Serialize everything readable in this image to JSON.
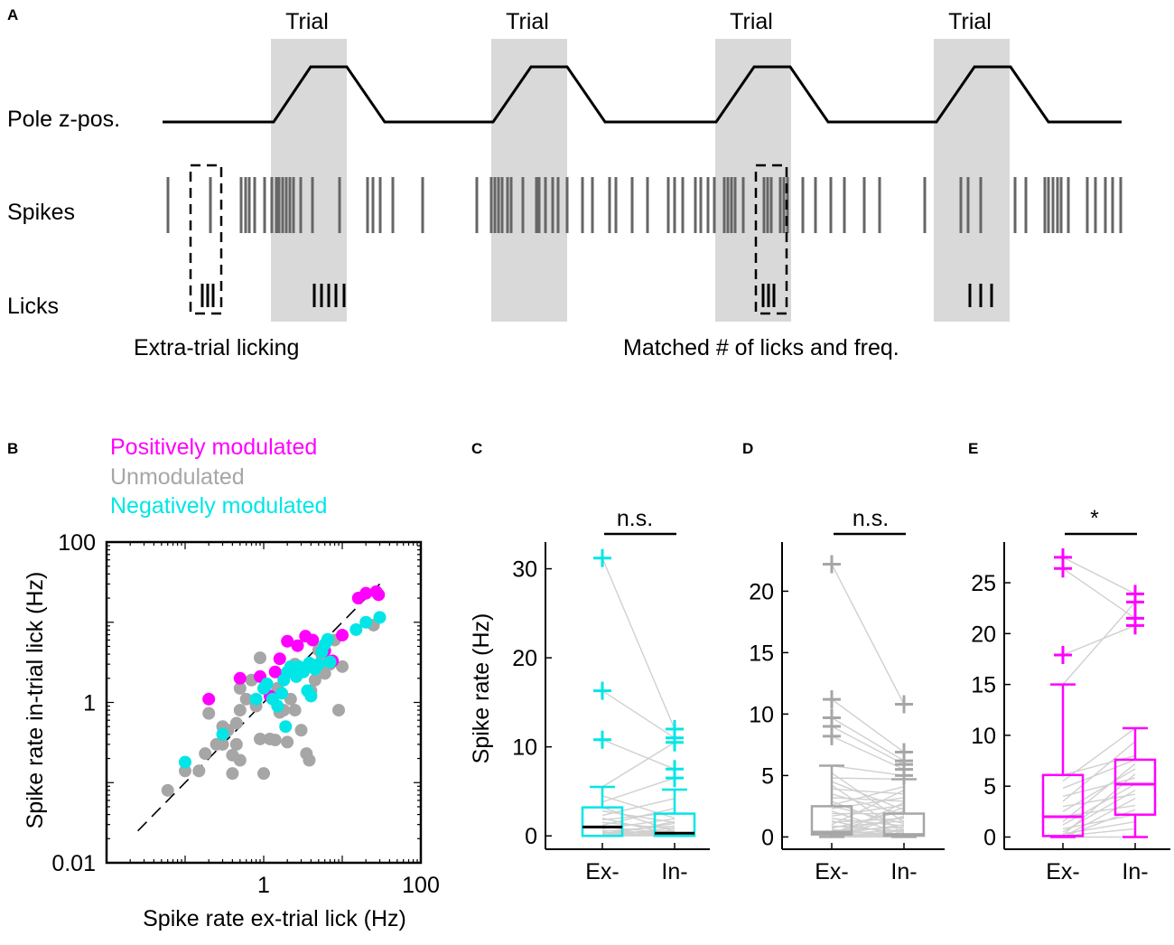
{
  "colors": {
    "positive": "#ff00ff",
    "unmodulated": "#a6a6a6",
    "negative": "#00e6e6",
    "trial_shade": "#d9d9d9",
    "spike": "#666666",
    "pair_line": "#d0d0d0",
    "ink": "#000000"
  },
  "panel_a": {
    "letter": "A",
    "trial_label": "Trial",
    "row_labels": {
      "pole": "Pole z-pos.",
      "spikes": "Spikes",
      "licks": "Licks"
    },
    "captions": {
      "left": "Extra-trial licking",
      "right": "Matched # of licks and freq."
    }
  },
  "panel_b": {
    "letter": "B",
    "legend": [
      "Positively modulated",
      "Unmodulated",
      "Negatively modulated"
    ]
  },
  "panel_c": {
    "letter": "C",
    "sig": "n.s."
  },
  "panel_d": {
    "letter": "D",
    "sig": "n.s."
  },
  "panel_e": {
    "letter": "E",
    "sig": "*"
  },
  "chart_data": [
    {
      "type": "scatter",
      "panel": "B",
      "title": "",
      "xlabel": "Spike rate ex-trial lick (Hz)",
      "ylabel": "Spike rate in-trial lick (Hz)",
      "xscale": "log",
      "yscale": "log",
      "xlim": [
        0.01,
        100
      ],
      "ylim": [
        0.01,
        100
      ],
      "xticks": [
        0.01,
        1,
        100
      ],
      "xtick_labels": [
        "",
        "1",
        "100"
      ],
      "yticks": [
        0.01,
        1,
        100
      ],
      "ytick_labels": [
        "0.01",
        "1",
        "100"
      ],
      "unity_line": [
        0.025,
        30
      ],
      "legend_position": "top-left (above axes)",
      "series": [
        {
          "name": "Positively modulated",
          "points": [
            [
              0.2,
              1.1
            ],
            [
              0.5,
              2.0
            ],
            [
              1.4,
              2.4
            ],
            [
              1.6,
              3.5
            ],
            [
              1.8,
              2.1
            ],
            [
              2.7,
              5.1
            ],
            [
              3.4,
              6.7
            ],
            [
              4.2,
              6.0
            ],
            [
              6.0,
              4.4
            ],
            [
              7.5,
              3.3
            ],
            [
              10,
              6.9
            ],
            [
              16,
              20
            ],
            [
              20,
              23
            ],
            [
              27,
              24
            ],
            [
              29,
              22
            ],
            [
              1.2,
              1.2
            ],
            [
              0.9,
              2.1
            ],
            [
              2.0,
              5.8
            ]
          ]
        },
        {
          "name": "Unmodulated",
          "points": [
            [
              0.06,
              0.08
            ],
            [
              0.1,
              0.14
            ],
            [
              0.15,
              0.14
            ],
            [
              0.18,
              0.23
            ],
            [
              0.2,
              0.73
            ],
            [
              0.25,
              0.3
            ],
            [
              0.3,
              0.3
            ],
            [
              0.35,
              0.45
            ],
            [
              0.4,
              0.13
            ],
            [
              0.4,
              0.22
            ],
            [
              0.45,
              0.3
            ],
            [
              0.5,
              0.8
            ],
            [
              0.5,
              1.5
            ],
            [
              0.5,
              0.19
            ],
            [
              0.6,
              1.1
            ],
            [
              0.7,
              1.9
            ],
            [
              0.8,
              0.9
            ],
            [
              0.9,
              0.35
            ],
            [
              0.9,
              3.6
            ],
            [
              1.0,
              0.13
            ],
            [
              1.2,
              0.35
            ],
            [
              1.4,
              0.34
            ],
            [
              1.6,
              0.75
            ],
            [
              1.8,
              0.8
            ],
            [
              2.0,
              0.32
            ],
            [
              2.2,
              1.1
            ],
            [
              2.5,
              0.8
            ],
            [
              3.0,
              0.45
            ],
            [
              3.5,
              0.23
            ],
            [
              3.8,
              0.19
            ],
            [
              4.0,
              1.4
            ],
            [
              4.5,
              1.9
            ],
            [
              5.0,
              4.5
            ],
            [
              5.5,
              3.9
            ],
            [
              6.0,
              2.3
            ],
            [
              7.0,
              3.0
            ],
            [
              8.0,
              6.0
            ],
            [
              9.0,
              0.8
            ],
            [
              10,
              2.8
            ],
            [
              25,
              9.2
            ],
            [
              0.3,
              0.5
            ],
            [
              0.45,
              0.55
            ],
            [
              2.5,
              3.0
            ],
            [
              3.2,
              2.5
            ],
            [
              1.5,
              1.5
            ]
          ]
        },
        {
          "name": "Negatively modulated",
          "points": [
            [
              0.1,
              0.18
            ],
            [
              0.3,
              0.4
            ],
            [
              0.8,
              1.1
            ],
            [
              1.0,
              1.5
            ],
            [
              1.1,
              1.7
            ],
            [
              1.3,
              1.1
            ],
            [
              1.5,
              0.9
            ],
            [
              1.7,
              1.3
            ],
            [
              1.9,
              0.5
            ],
            [
              2.0,
              2.4
            ],
            [
              2.2,
              2.8
            ],
            [
              2.6,
              2.1
            ],
            [
              2.8,
              2.8
            ],
            [
              3.2,
              2.4
            ],
            [
              3.6,
              1.4
            ],
            [
              4.0,
              1.2
            ],
            [
              4.5,
              2.6
            ],
            [
              5.0,
              3.0
            ],
            [
              5.5,
              4.3
            ],
            [
              6.0,
              5.3
            ],
            [
              6.5,
              6.1
            ],
            [
              7.0,
              3.2
            ],
            [
              15,
              8.1
            ],
            [
              20,
              10
            ],
            [
              30,
              11.5
            ],
            [
              1.8,
              1.9
            ],
            [
              2.4,
              2.6
            ],
            [
              3.8,
              3.1
            ]
          ]
        }
      ]
    },
    {
      "type": "box",
      "panel": "C",
      "ylabel": "Spike rate (Hz)",
      "categories": [
        "Ex-",
        "In-"
      ],
      "ylim": [
        -1.5,
        33
      ],
      "yticks": [
        0,
        10,
        20,
        30
      ],
      "color": "#00e6e6",
      "significance": "n.s.",
      "boxes": [
        {
          "q1": 0,
          "median": 1.0,
          "q3": 3.2,
          "whisker_low": 0,
          "whisker_high": 5.5,
          "outliers": [
            10.8,
            16.3,
            31.2
          ]
        },
        {
          "q1": 0,
          "median": 0.3,
          "q3": 2.5,
          "whisker_low": 0,
          "whisker_high": 5.2,
          "outliers": [
            6.5,
            7.5,
            10.5,
            11.0,
            12.0
          ]
        }
      ],
      "pairs": [
        [
          31.2,
          12.0
        ],
        [
          16.3,
          11.0
        ],
        [
          10.8,
          7.5
        ],
        [
          5.5,
          10.5
        ],
        [
          4.5,
          2.0
        ],
        [
          3.8,
          6.5
        ],
        [
          3.2,
          0.5
        ],
        [
          2.8,
          1.5
        ],
        [
          2.3,
          4.2
        ],
        [
          2.0,
          0.1
        ],
        [
          1.8,
          2.6
        ],
        [
          1.5,
          0.8
        ],
        [
          1.2,
          3.1
        ],
        [
          1.0,
          0.3
        ],
        [
          0.8,
          1.9
        ],
        [
          0.6,
          0.2
        ],
        [
          0.5,
          1.1
        ],
        [
          0.4,
          0.0
        ],
        [
          0.3,
          0.6
        ],
        [
          0.2,
          1.4
        ],
        [
          0.1,
          0.3
        ],
        [
          0.1,
          0.0
        ],
        [
          0.0,
          0.5
        ],
        [
          0.0,
          0.2
        ],
        [
          0.0,
          0.0
        ],
        [
          0.0,
          0.9
        ],
        [
          0.0,
          1.6
        ],
        [
          0.0,
          0.1
        ]
      ]
    },
    {
      "type": "box",
      "panel": "D",
      "ylabel": "",
      "categories": [
        "Ex-",
        "In-"
      ],
      "ylim": [
        -1.0,
        24
      ],
      "yticks": [
        0,
        5,
        10,
        15,
        20
      ],
      "color": "#a6a6a6",
      "significance": "n.s.",
      "boxes": [
        {
          "q1": 0.2,
          "median": 0.4,
          "q3": 2.5,
          "whisker_low": 0,
          "whisker_high": 5.8,
          "outliers": [
            8.2,
            9.0,
            9.7,
            11.2,
            22.2
          ]
        },
        {
          "q1": 0.1,
          "median": 0.2,
          "q3": 1.9,
          "whisker_low": 0,
          "whisker_high": 4.7,
          "outliers": [
            5.0,
            5.5,
            5.9,
            6.2,
            6.9,
            10.8
          ]
        }
      ],
      "pairs": [
        [
          22.2,
          10.8
        ],
        [
          11.2,
          6.9
        ],
        [
          9.7,
          6.2
        ],
        [
          9.0,
          5.9
        ],
        [
          8.2,
          5.5
        ],
        [
          5.8,
          5.0
        ],
        [
          5.2,
          1.2
        ],
        [
          4.8,
          4.7
        ],
        [
          4.5,
          2.2
        ],
        [
          4.2,
          0.3
        ],
        [
          3.9,
          3.5
        ],
        [
          3.5,
          1.8
        ],
        [
          3.2,
          2.9
        ],
        [
          2.9,
          0.6
        ],
        [
          2.6,
          4.1
        ],
        [
          2.5,
          1.1
        ],
        [
          2.3,
          3.2
        ],
        [
          2.1,
          0.2
        ],
        [
          1.9,
          1.9
        ],
        [
          1.7,
          2.6
        ],
        [
          1.5,
          0.9
        ],
        [
          1.3,
          0.1
        ],
        [
          1.2,
          1.5
        ],
        [
          1.0,
          3.8
        ],
        [
          0.9,
          0.4
        ],
        [
          0.8,
          1.3
        ],
        [
          0.7,
          2.1
        ],
        [
          0.6,
          0.1
        ],
        [
          0.5,
          0.8
        ],
        [
          0.4,
          1.6
        ],
        [
          0.4,
          0.2
        ],
        [
          0.3,
          2.4
        ],
        [
          0.3,
          0.0
        ],
        [
          0.2,
          0.6
        ],
        [
          0.2,
          1.0
        ],
        [
          0.1,
          0.3
        ],
        [
          0.1,
          0.1
        ],
        [
          0.0,
          0.5
        ],
        [
          0.0,
          1.7
        ],
        [
          0.0,
          0.0
        ],
        [
          0.0,
          2.8
        ],
        [
          0.0,
          0.2
        ]
      ]
    },
    {
      "type": "box",
      "panel": "E",
      "ylabel": "",
      "categories": [
        "Ex-",
        "In-"
      ],
      "ylim": [
        -1.2,
        29
      ],
      "yticks": [
        0,
        5,
        10,
        15,
        20,
        25
      ],
      "color": "#ff00ff",
      "significance": "*",
      "boxes": [
        {
          "q1": 0.1,
          "median": 2.0,
          "q3": 6.1,
          "whisker_low": 0,
          "whisker_high": 15.0,
          "outliers": [
            17.9,
            26.4,
            27.5
          ]
        },
        {
          "q1": 2.2,
          "median": 5.2,
          "q3": 7.6,
          "whisker_low": 0,
          "whisker_high": 10.7,
          "outliers": [
            20.8,
            21.5,
            23.1,
            23.9
          ]
        }
      ],
      "pairs": [
        [
          27.5,
          23.9
        ],
        [
          26.4,
          21.5
        ],
        [
          17.9,
          20.8
        ],
        [
          15.0,
          23.1
        ],
        [
          6.1,
          8.0
        ],
        [
          5.5,
          10.7
        ],
        [
          4.8,
          7.6
        ],
        [
          4.0,
          5.8
        ],
        [
          3.5,
          9.4
        ],
        [
          3.0,
          4.2
        ],
        [
          2.5,
          6.7
        ],
        [
          2.0,
          3.1
        ],
        [
          1.5,
          7.2
        ],
        [
          1.2,
          5.2
        ],
        [
          0.8,
          2.2
        ],
        [
          0.5,
          4.6
        ],
        [
          0.3,
          1.5
        ],
        [
          0.2,
          6.2
        ],
        [
          0.1,
          0.8
        ],
        [
          0.0,
          3.8
        ],
        [
          0.0,
          0.0
        ],
        [
          0.0,
          2.7
        ]
      ]
    }
  ]
}
